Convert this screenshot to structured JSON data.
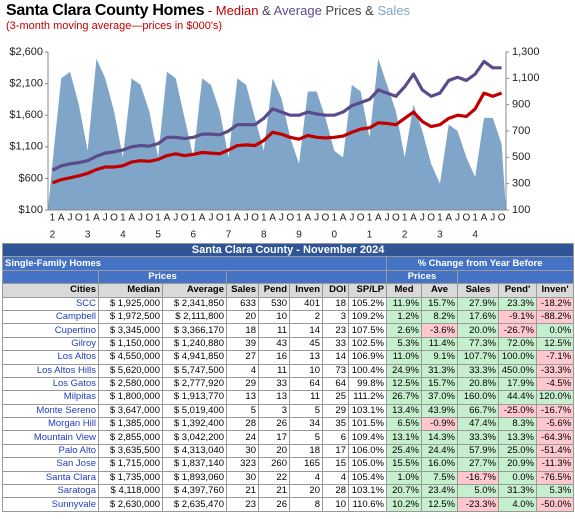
{
  "chart_data": {
    "type": "combo",
    "title": "Santa Clara County Homes",
    "title_joins": [
      "-",
      "&",
      "Prices &"
    ],
    "subtitle": "(3-month moving average—prices in $000's)",
    "categories": [
      "1",
      "A",
      "J",
      "O",
      "1",
      "A",
      "J",
      "O",
      "1",
      "A",
      "J",
      "O",
      "1",
      "A",
      "J",
      "O",
      "1",
      "A",
      "J",
      "O",
      "1",
      "A",
      "J",
      "O",
      "1",
      "A",
      "J",
      "O",
      "1",
      "A",
      "J",
      "O",
      "1",
      "A",
      "J",
      "O",
      "1",
      "A",
      "J",
      "O",
      "1",
      "A",
      "J",
      "O",
      "1",
      "A",
      "J",
      "O",
      "1",
      "A",
      "J",
      "O"
    ],
    "year_labels": [
      "2",
      "3",
      "4",
      "5",
      "6",
      "7",
      "8",
      "9",
      "0",
      "1",
      "2",
      "3",
      "4"
    ],
    "ylim": [
      100,
      2600
    ],
    "yticks": [
      {
        "value": 100,
        "label": "$100"
      },
      {
        "value": 600,
        "label": "$600"
      },
      {
        "value": 1100,
        "label": "$1,100"
      },
      {
        "value": 1600,
        "label": "$1,600"
      },
      {
        "value": 2100,
        "label": "$2,100"
      },
      {
        "value": 2600,
        "label": "$2,600"
      }
    ],
    "y2lim": [
      100,
      1300
    ],
    "y2ticks": [
      100,
      300,
      500,
      700,
      900,
      {
        "value": 1100,
        "label": "1,100"
      },
      {
        "value": 1300,
        "label": "1,300"
      }
    ],
    "series": [
      {
        "name": "Median",
        "type": "line",
        "color": "#c00000",
        "values": [
          530,
          580,
          610,
          640,
          680,
          740,
          780,
          780,
          800,
          860,
          880,
          870,
          900,
          960,
          990,
          960,
          980,
          1010,
          1000,
          990,
          1050,
          1120,
          1130,
          1120,
          1200,
          1330,
          1300,
          1250,
          1220,
          1280,
          1250,
          1240,
          1250,
          1270,
          1330,
          1380,
          1400,
          1480,
          1470,
          1450,
          1550,
          1650,
          1500,
          1420,
          1450,
          1550,
          1600,
          1580,
          1700,
          1950,
          1900,
          1950
        ]
      },
      {
        "name": "Average",
        "type": "line",
        "color": "#5b4b8a",
        "values": [
          730,
          800,
          830,
          850,
          880,
          950,
          1000,
          1020,
          1050,
          1100,
          1120,
          1110,
          1150,
          1250,
          1250,
          1230,
          1250,
          1300,
          1300,
          1290,
          1350,
          1450,
          1450,
          1450,
          1550,
          1700,
          1650,
          1600,
          1600,
          1650,
          1620,
          1600,
          1600,
          1650,
          1750,
          1800,
          1850,
          2000,
          1950,
          1900,
          2050,
          2250,
          2000,
          1900,
          1950,
          2150,
          2200,
          2150,
          2250,
          2450,
          2350,
          2350
        ]
      },
      {
        "name": "Sales",
        "type": "area",
        "axis": "y2",
        "color": "#7fa6c9",
        "values": [
          450,
          1100,
          1150,
          900,
          550,
          1250,
          1100,
          850,
          500,
          1100,
          1050,
          850,
          500,
          1150,
          1100,
          800,
          500,
          1100,
          1050,
          850,
          500,
          1100,
          1050,
          800,
          550,
          1100,
          950,
          650,
          450,
          1000,
          1000,
          800,
          550,
          500,
          1050,
          1000,
          650,
          1250,
          1050,
          850,
          500,
          900,
          700,
          450,
          300,
          750,
          700,
          500,
          350,
          800,
          800,
          600
        ]
      }
    ]
  },
  "table": {
    "title": "Santa Clara County - November 2024",
    "left_group": "Single-Family Homes",
    "right_group": "% Change from Year Before",
    "left_sub": "Prices",
    "right_sub": "Prices",
    "columns": [
      "Cities",
      "Median",
      "Average",
      "Sales",
      "Pend",
      "Inven",
      "DOI",
      "SP/LP",
      "Med",
      "Ave",
      "Sales",
      "Pend'",
      "Inven'"
    ],
    "rows": [
      [
        "SCC",
        "$ 1,925,000",
        "$ 2,341,850",
        "633",
        "530",
        "401",
        "18",
        "105.2%",
        "11.9%",
        "15.7%",
        "27.9%",
        "23.3%",
        "-18.2%"
      ],
      [
        "Campbell",
        "$ 1,972,500",
        "$ 2,111,800",
        "20",
        "10",
        "2",
        "3",
        "109.2%",
        "1.2%",
        "8.2%",
        "17.6%",
        "-9.1%",
        "-88.2%"
      ],
      [
        "Cupertino",
        "$ 3,345,000",
        "$ 3,366,170",
        "18",
        "11",
        "14",
        "23",
        "107.5%",
        "2.6%",
        "-3.6%",
        "20.0%",
        "-26.7%",
        "0.0%"
      ],
      [
        "Gilroy",
        "$ 1,150,000",
        "$ 1,240,880",
        "39",
        "43",
        "45",
        "33",
        "102.5%",
        "5.3%",
        "11.4%",
        "77.3%",
        "72.0%",
        "12.5%"
      ],
      [
        "Los Altos",
        "$ 4,550,000",
        "$ 4,941,850",
        "27",
        "16",
        "13",
        "14",
        "106.9%",
        "11.0%",
        "9.1%",
        "107.7%",
        "100.0%",
        "-7.1%"
      ],
      [
        "Los Altos Hills",
        "$ 5,620,000",
        "$ 5,747,500",
        "4",
        "11",
        "10",
        "73",
        "100.4%",
        "24.9%",
        "31.3%",
        "33.3%",
        "450.0%",
        "-33.3%"
      ],
      [
        "Los Gatos",
        "$ 2,580,000",
        "$ 2,777,920",
        "29",
        "33",
        "64",
        "64",
        "99.8%",
        "12.5%",
        "15.7%",
        "20.8%",
        "17.9%",
        "-4.5%"
      ],
      [
        "Milpitas",
        "$ 1,800,000",
        "$ 1,913,770",
        "13",
        "13",
        "11",
        "25",
        "111.2%",
        "26.7%",
        "37.0%",
        "160.0%",
        "44.4%",
        "120.0%"
      ],
      [
        "Monte Sereno",
        "$ 3,647,000",
        "$ 5,019,400",
        "5",
        "3",
        "5",
        "29",
        "103.1%",
        "13.4%",
        "43.9%",
        "66.7%",
        "-25.0%",
        "-16.7%"
      ],
      [
        "Morgan Hill",
        "$ 1,385,000",
        "$ 1,392,400",
        "28",
        "26",
        "34",
        "35",
        "101.5%",
        "6.5%",
        "-0.9%",
        "47.4%",
        "8.3%",
        "-5.6%"
      ],
      [
        "Mountain View",
        "$ 2,855,000",
        "$ 3,042,200",
        "24",
        "17",
        "5",
        "6",
        "109.4%",
        "13.1%",
        "14.3%",
        "33.3%",
        "13.3%",
        "-64.3%"
      ],
      [
        "Palo Alto",
        "$ 3,635,500",
        "$ 4,313,040",
        "30",
        "20",
        "18",
        "17",
        "106.0%",
        "25.4%",
        "24.4%",
        "57.9%",
        "25.0%",
        "-51.4%"
      ],
      [
        "San Jose",
        "$ 1,715,000",
        "$ 1,837,140",
        "323",
        "260",
        "165",
        "15",
        "105.0%",
        "15.5%",
        "16.0%",
        "27.7%",
        "20.9%",
        "-11.3%"
      ],
      [
        "Santa Clara",
        "$ 1,735,000",
        "$ 1,893,060",
        "30",
        "22",
        "4",
        "4",
        "105.4%",
        "1.0%",
        "7.5%",
        "-16.7%",
        "0.0%",
        "-76.5%"
      ],
      [
        "Saratoga",
        "$ 4,118,000",
        "$ 4,397,760",
        "21",
        "21",
        "20",
        "28",
        "103.1%",
        "20.7%",
        "23.4%",
        "5.0%",
        "31.3%",
        "5.3%"
      ],
      [
        "Sunnyvale",
        "$ 2,630,000",
        "$ 2,635,470",
        "23",
        "26",
        "8",
        "10",
        "110.6%",
        "10.2%",
        "12.5%",
        "-23.3%",
        "4.0%",
        "-50.0%"
      ]
    ]
  }
}
